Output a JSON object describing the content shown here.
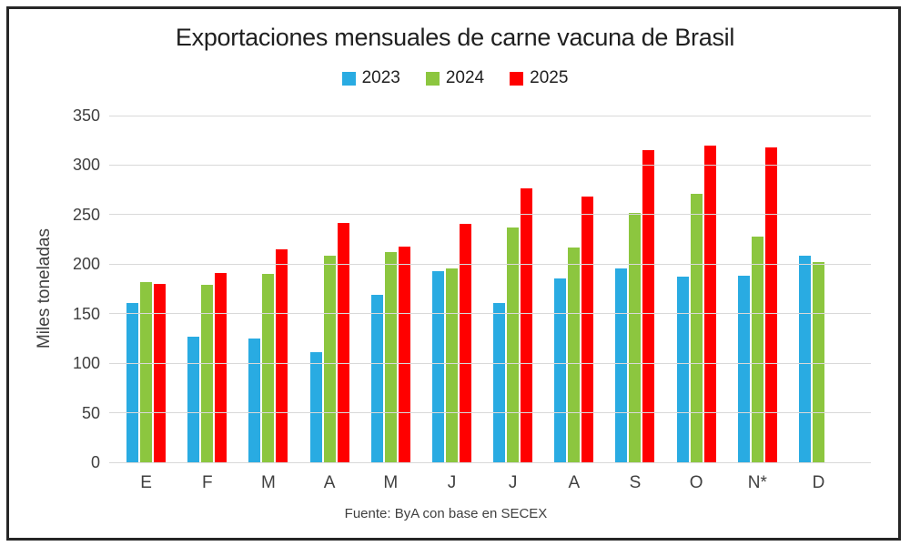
{
  "chart_data": {
    "type": "bar",
    "title": "Exportaciones mensuales de carne vacuna de Brasil",
    "ylabel": "Miles toneladas",
    "source_note": "Fuente: ByA con base en SECEX",
    "categories": [
      "E",
      "F",
      "M",
      "A",
      "M",
      "J",
      "J",
      "A",
      "S",
      "O",
      "N*",
      "D"
    ],
    "series": [
      {
        "name": "2023",
        "color": "#29ABE2",
        "values": [
          161,
          127,
          125,
          111,
          169,
          193,
          161,
          186,
          196,
          187,
          188,
          209
        ]
      },
      {
        "name": "2024",
        "color": "#8CC63F",
        "values": [
          182,
          179,
          190,
          209,
          212,
          196,
          237,
          217,
          252,
          271,
          228,
          202
        ]
      },
      {
        "name": "2025",
        "color": "#FF0000",
        "values": [
          180,
          191,
          215,
          242,
          218,
          241,
          277,
          268,
          315,
          320,
          318,
          null
        ]
      }
    ],
    "ylim": [
      0,
      350
    ],
    "ytick_step": 50,
    "grid": true,
    "legend_position": "top",
    "colors": {
      "grid": "#d9d9d9",
      "axis_text": "#404040",
      "border": "#262626"
    }
  }
}
